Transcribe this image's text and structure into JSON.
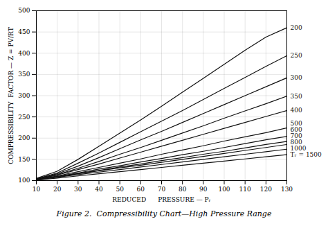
{
  "chart_data": {
    "type": "line",
    "title": "Figure 2.  Compressibility Chart—High Pressure Range",
    "xlabel": "REDUCED      PRESSURE — Pᵣ",
    "ylabel": "COMPRESSIBILITY  FACTOR — Z = PV/RT",
    "x": [
      10,
      20,
      30,
      40,
      50,
      60,
      70,
      80,
      90,
      100,
      110,
      120,
      130
    ],
    "series": [
      {
        "name": "200",
        "color": "#111111",
        "values": [
          105,
          122,
          150,
          181,
          212,
          243,
          275,
          308,
          341,
          374,
          407,
          438,
          460
        ]
      },
      {
        "name": "250",
        "color": "#111111",
        "values": [
          104,
          118,
          141,
          165,
          190,
          215,
          240,
          265,
          291,
          317,
          343,
          369,
          394
        ]
      },
      {
        "name": "300",
        "color": "#111111",
        "values": [
          104,
          116,
          134,
          154,
          175,
          196,
          216,
          237,
          258,
          279,
          300,
          321,
          342
        ]
      },
      {
        "name": "350",
        "color": "#111111",
        "values": [
          103,
          114,
          129,
          145,
          162,
          178,
          195,
          212,
          229,
          247,
          264,
          281,
          299
        ]
      },
      {
        "name": "400",
        "color": "#111111",
        "values": [
          103,
          113,
          126,
          139,
          153,
          167,
          181,
          195,
          209,
          223,
          237,
          251,
          265
        ]
      },
      {
        "name": "500",
        "color": "#111111",
        "values": [
          102,
          111,
          121,
          131,
          141,
          151,
          162,
          172,
          182,
          193,
          203,
          213,
          224
        ]
      },
      {
        "name": "600",
        "color": "#111111",
        "values": [
          102,
          110,
          118,
          127,
          135,
          144,
          152,
          161,
          169,
          178,
          187,
          196,
          204
        ]
      },
      {
        "name": "700",
        "color": "#111111",
        "values": [
          102,
          109,
          117,
          124,
          132,
          139,
          147,
          154,
          162,
          169,
          177,
          185,
          192
        ]
      },
      {
        "name": "800",
        "color": "#111111",
        "values": [
          102,
          109,
          116,
          123,
          130,
          136,
          143,
          150,
          157,
          164,
          171,
          178,
          185
        ]
      },
      {
        "name": "1000",
        "color": "#111111",
        "values": [
          101,
          108,
          114,
          120,
          126,
          132,
          138,
          144,
          150,
          156,
          162,
          168,
          174
        ]
      },
      {
        "name": "Tᵣ = 1500",
        "color": "#111111",
        "values": [
          101,
          106,
          111,
          116,
          121,
          126,
          131,
          136,
          141,
          146,
          151,
          156,
          161
        ]
      }
    ],
    "xlim": [
      10,
      130
    ],
    "ylim": [
      100,
      500
    ],
    "xticks": [
      10,
      20,
      30,
      40,
      50,
      60,
      70,
      80,
      90,
      100,
      110,
      120,
      130
    ],
    "yticks": [
      100,
      150,
      200,
      250,
      300,
      350,
      400,
      450,
      500
    ],
    "grid": true
  }
}
